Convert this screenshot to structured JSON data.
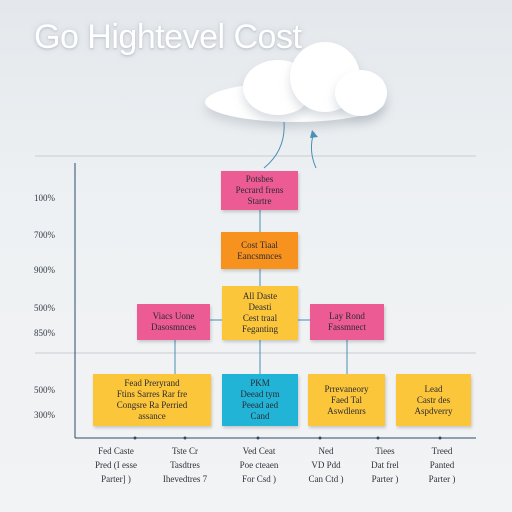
{
  "title": "Go Hightevel Cost",
  "colors": {
    "pink": "#ec5b93",
    "orange": "#f7921e",
    "yellow": "#fcc63a",
    "cyan": "#22b4d6",
    "line": "#4a8fb4",
    "axis": "#2e4a6b"
  },
  "y_labels": [
    "100%",
    "700%",
    "900%",
    "500%",
    "850%",
    "500%",
    "300%"
  ],
  "boxes": {
    "top": "Potsbes\nPecrard frens\nStartre",
    "cost": "Cost Tiaal\nEancsmnces",
    "center": "All Daste\nDeasti\nCest traal\nFeganting",
    "left_pink": "Viacs Uone\nDasosmnces",
    "right_pink": "Lay Rond\nFassmnect",
    "bottom1": "Fead Preryrand\nFtins Sarres Rar fre\nCongsre Ra Perried\nassance",
    "bottom2": "PKM\nDeead tym\nPeead aed\nCand",
    "bottom3": "Prrevaneory\nFaed Tal\nAswdlenrs",
    "bottom4": "Lead\nCastr des\nAspdverry"
  },
  "bottom_labels": [
    "Fed Caste\nPred (I esse\nParter] )",
    "Tste Cr\nTasdtres\nIhevedtres 7",
    "Ved Ceat\nPoe cteaen\nFor Csd )",
    "Ned\nVD Pdd\nCan Ctd )",
    "Tiees\nDat frel\nParter )",
    "Treed\nPanted\nParter )"
  ]
}
